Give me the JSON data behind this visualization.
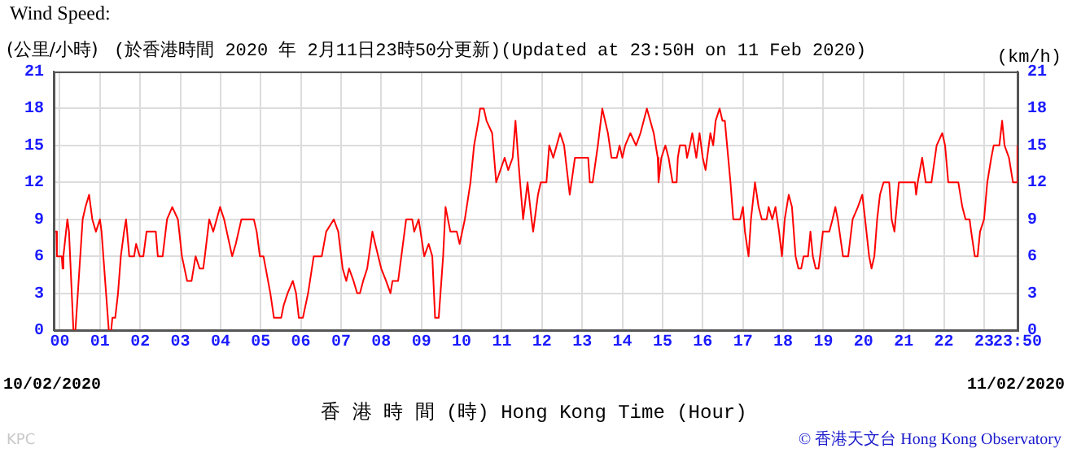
{
  "chart_data": {
    "type": "line",
    "title": "Wind Speed:",
    "subtitle": "(於香港時間 2020 年 2月11日23時50分更新)(Updated at 23:50H on 11 Feb 2020)",
    "ylabel": "(公里/小時)",
    "y2label": "(km/h)",
    "xlabel": "香 港 時 間 (時)  Hong Kong Time (Hour)",
    "annotations": [
      "10/02/2020",
      "11/02/2020",
      "© 香港天文台 Hong Kong Observatory",
      "KPC"
    ],
    "xlim": [
      -0.15,
      23.833
    ],
    "xticks": [
      {
        "value": 0,
        "label": "00"
      },
      {
        "value": 1,
        "label": "01"
      },
      {
        "value": 2,
        "label": "02"
      },
      {
        "value": 3,
        "label": "03"
      },
      {
        "value": 4,
        "label": "04"
      },
      {
        "value": 5,
        "label": "05"
      },
      {
        "value": 6,
        "label": "06"
      },
      {
        "value": 7,
        "label": "07"
      },
      {
        "value": 8,
        "label": "08"
      },
      {
        "value": 9,
        "label": "09"
      },
      10,
      11,
      12,
      13,
      14,
      15,
      16,
      17,
      18,
      19,
      20,
      21,
      22,
      23,
      {
        "value": 23.833,
        "label": "23:50"
      }
    ],
    "ylim": [
      0,
      21
    ],
    "yticks": [
      0,
      3,
      6,
      9,
      12,
      15,
      18,
      21
    ],
    "y2lim": [
      0,
      21
    ],
    "y2ticks": [
      0,
      3,
      6,
      9,
      12,
      15,
      18,
      21
    ],
    "grid": true,
    "legend": false,
    "marker": "none",
    "line_style": "solid",
    "series": [
      {
        "color": "#ff0000",
        "x": [
          -0.15,
          -0.08,
          -0.07,
          0.05,
          0.07,
          0.09,
          0.19,
          0.23,
          0.34,
          0.39,
          0.57,
          0.64,
          0.73,
          0.77,
          0.81,
          0.9,
          1.0,
          1.04,
          1.22,
          1.28,
          1.31,
          1.38,
          1.45,
          1.52,
          1.6,
          1.65,
          1.73,
          1.85,
          1.9,
          1.99,
          2.08,
          2.16,
          2.39,
          2.44,
          2.56,
          2.67,
          2.8,
          2.94,
          3.04,
          3.17,
          3.28,
          3.33,
          3.38,
          3.48,
          3.57,
          3.61,
          3.72,
          3.82,
          3.99,
          4.09,
          4.29,
          4.38,
          4.52,
          4.83,
          4.9,
          4.98,
          5.07,
          5.24,
          5.33,
          5.51,
          5.57,
          5.67,
          5.8,
          5.88,
          5.95,
          6.05,
          6.18,
          6.32,
          6.52,
          6.63,
          6.82,
          6.93,
          7.04,
          7.13,
          7.2,
          7.31,
          7.4,
          7.47,
          7.55,
          7.65,
          7.78,
          7.85,
          8.0,
          8.12,
          8.23,
          8.28,
          8.42,
          8.5,
          8.62,
          8.77,
          8.82,
          8.93,
          9.07,
          9.18,
          9.27,
          9.34,
          9.43,
          9.54,
          9.6,
          9.72,
          9.88,
          9.95,
          10.08,
          10.22,
          10.31,
          10.42,
          10.46,
          10.55,
          10.62,
          10.76,
          10.86,
          11.07,
          11.16,
          11.27,
          11.34,
          11.43,
          11.53,
          11.64,
          11.74,
          11.78,
          11.9,
          11.97,
          12.11,
          12.18,
          12.28,
          12.45,
          12.55,
          12.69,
          12.82,
          13.15,
          13.19,
          13.26,
          13.39,
          13.5,
          13.64,
          13.73,
          13.86,
          13.93,
          14.0,
          14.07,
          14.2,
          14.34,
          14.45,
          14.61,
          14.78,
          14.88,
          14.9,
          14.97,
          15.07,
          15.15,
          15.25,
          15.35,
          15.38,
          15.43,
          15.57,
          15.61,
          15.68,
          15.74,
          15.84,
          15.92,
          16.0,
          16.07,
          16.19,
          16.26,
          16.32,
          16.42,
          16.49,
          16.55,
          16.69,
          16.76,
          16.93,
          17.0,
          17.05,
          17.14,
          17.2,
          17.3,
          17.39,
          17.47,
          17.59,
          17.64,
          17.73,
          17.81,
          17.9,
          17.97,
          18.04,
          18.14,
          18.22,
          18.31,
          18.38,
          18.45,
          18.51,
          18.62,
          18.68,
          18.74,
          18.81,
          18.88,
          18.92,
          18.99,
          19.15,
          19.23,
          19.3,
          19.36,
          19.49,
          19.62,
          19.73,
          19.86,
          19.97,
          20.04,
          20.14,
          20.2,
          20.27,
          20.34,
          20.41,
          20.5,
          20.64,
          20.7,
          20.77,
          20.88,
          21.28,
          21.31,
          21.35,
          21.46,
          21.55,
          21.69,
          21.82,
          21.96,
          22.03,
          22.11,
          22.36,
          22.46,
          22.54,
          22.64,
          22.68,
          22.77,
          22.84,
          22.9,
          23.0,
          23.08,
          23.18,
          23.24,
          23.38,
          23.45,
          23.51,
          23.62,
          23.72,
          23.82,
          23.83
        ],
        "values": [
          8,
          8,
          6,
          6,
          5,
          6,
          9,
          8,
          0,
          0,
          9,
          10,
          11,
          10,
          9,
          8,
          9,
          8,
          0,
          0,
          1,
          1,
          3,
          6,
          8,
          9,
          6,
          6,
          7,
          6,
          6,
          8,
          8,
          6,
          6,
          9,
          10,
          9,
          6,
          4,
          4,
          5,
          6,
          5,
          5,
          6,
          9,
          8,
          10,
          9,
          6,
          7,
          9,
          9,
          8,
          6,
          6,
          3,
          1,
          1,
          2,
          3,
          4,
          3,
          1,
          1,
          3,
          6,
          6,
          8,
          9,
          8,
          5,
          4,
          5,
          4,
          3,
          3,
          4,
          5,
          8,
          7,
          5,
          4,
          3,
          4,
          4,
          6,
          9,
          9,
          8,
          9,
          6,
          7,
          6,
          1,
          1,
          6,
          10,
          8,
          8,
          7,
          9,
          12,
          15,
          17,
          18,
          18,
          17,
          16,
          12,
          14,
          13,
          14,
          17,
          13,
          9,
          12,
          9,
          8,
          11,
          12,
          12,
          15,
          14,
          16,
          15,
          11,
          14,
          14,
          12,
          12,
          15,
          18,
          16,
          14,
          14,
          15,
          14,
          15,
          16,
          15,
          16,
          18,
          16,
          14,
          12,
          14,
          15,
          14,
          12,
          12,
          14,
          15,
          15,
          14,
          15,
          16,
          14,
          16,
          14,
          13,
          16,
          15,
          17,
          18,
          17,
          17,
          12,
          9,
          9,
          10,
          8,
          6,
          9,
          12,
          10,
          9,
          9,
          10,
          9,
          10,
          8,
          6,
          9,
          11,
          10,
          6,
          5,
          5,
          6,
          6,
          8,
          6,
          5,
          5,
          6,
          8,
          8,
          9,
          10,
          9,
          6,
          6,
          9,
          10,
          11,
          9,
          6,
          5,
          6,
          9,
          11,
          12,
          12,
          9,
          8,
          12,
          12,
          11,
          12,
          14,
          12,
          12,
          15,
          16,
          15,
          12,
          12,
          10,
          9,
          9,
          8,
          6,
          6,
          8,
          9,
          12,
          14,
          15,
          15,
          17,
          15,
          14,
          12,
          12,
          15
        ]
      }
    ]
  }
}
